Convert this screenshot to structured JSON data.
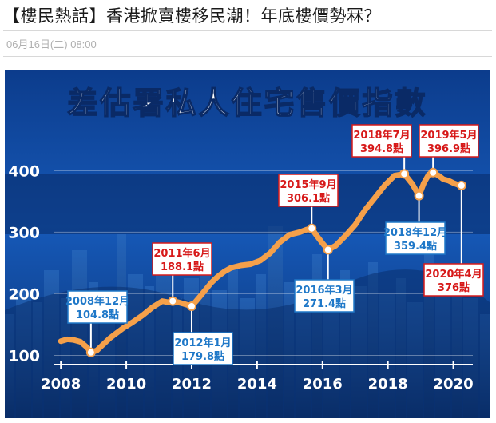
{
  "article": {
    "headline": "【樓民熱話】香港掀賣樓移民潮！年底樓價勢冧？",
    "date": "06月16日(二) 08:00"
  },
  "chart_data": {
    "type": "line",
    "title": "差估署私人住宅售價指數",
    "ylim": [
      85,
      420
    ],
    "xlim": [
      2007.8,
      2020.45
    ],
    "yticks": [
      100,
      200,
      300,
      400
    ],
    "xticks": [
      2008,
      2010,
      2012,
      2014,
      2016,
      2018,
      2020
    ],
    "line_color": "#f5a04a",
    "series": [
      {
        "x": [
          2008.0,
          2008.2,
          2008.4,
          2008.6,
          2008.8,
          2008.92,
          2009.1,
          2009.3,
          2009.5,
          2009.7,
          2009.9,
          2010.2,
          2010.5,
          2010.8,
          2011.1,
          2011.3,
          2011.42,
          2011.6,
          2011.8,
          2012.0,
          2012.2,
          2012.4,
          2012.6,
          2012.8,
          2013.0,
          2013.2,
          2013.5,
          2013.8,
          2014.1,
          2014.4,
          2014.7,
          2015.0,
          2015.3,
          2015.5,
          2015.67,
          2015.8,
          2016.0,
          2016.17,
          2016.4,
          2016.7,
          2017.0,
          2017.3,
          2017.6,
          2017.9,
          2018.2,
          2018.5,
          2018.75,
          2018.95,
          2019.1,
          2019.25,
          2019.38,
          2019.55,
          2019.7,
          2019.85,
          2020.0,
          2020.15,
          2020.25
        ],
        "y": [
          123,
          126,
          125,
          122,
          113,
          104.8,
          108,
          118,
          128,
          136,
          144,
          154,
          165,
          178,
          188,
          186,
          188.1,
          186,
          183,
          179.8,
          192,
          205,
          218,
          228,
          236,
          242,
          246,
          248,
          254,
          266,
          284,
          296,
          300,
          304,
          306.1,
          296,
          282,
          271.4,
          278,
          294,
          312,
          336,
          356,
          376,
          392,
          394.8,
          378,
          359.4,
          380,
          394,
          396.9,
          392,
          386,
          384,
          380,
          377,
          376
        ]
      }
    ],
    "annotations": [
      {
        "date": "2008年12月",
        "value": "104.8點",
        "color": "#1f78c8"
      },
      {
        "date": "2011年6月",
        "value": "188.1點",
        "color": "#d71a1a"
      },
      {
        "date": "2012年1月",
        "value": "179.8點",
        "color": "#1f78c8"
      },
      {
        "date": "2015年9月",
        "value": "306.1點",
        "color": "#d71a1a"
      },
      {
        "date": "2016年3月",
        "value": "271.4點",
        "color": "#1f78c8"
      },
      {
        "date": "2018年7月",
        "value": "394.8點",
        "color": "#d71a1a"
      },
      {
        "date": "2018年12月",
        "value": "359.4點",
        "color": "#1f78c8"
      },
      {
        "date": "2019年5月",
        "value": "396.9點",
        "color": "#d71a1a"
      },
      {
        "date": "2020年4月",
        "value": "376點",
        "color": "#d71a1a"
      }
    ]
  }
}
